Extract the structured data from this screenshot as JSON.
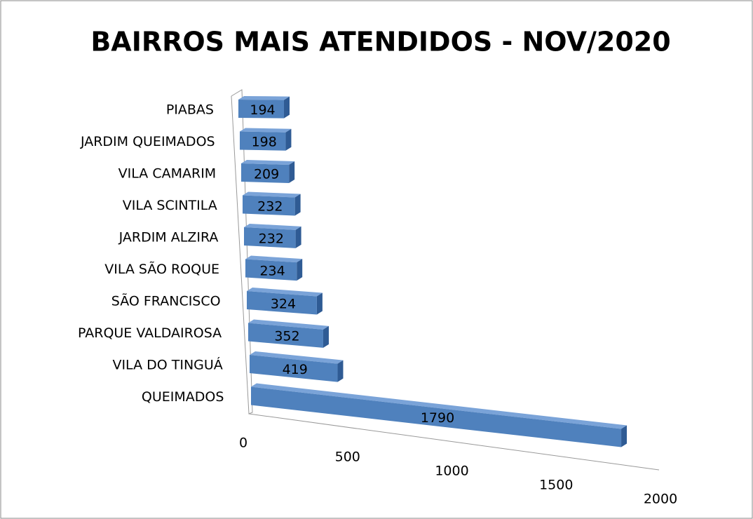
{
  "chart_data": {
    "type": "bar",
    "orientation": "horizontal",
    "title": "BAIRROS MAIS ATENDIDOS - NOV/2020",
    "categories": [
      "PIABAS",
      "JARDIM QUEIMADOS",
      "VILA CAMARIM",
      "VILA SCINTILA",
      "JARDIM ALZIRA",
      "VILA SÃO ROQUE",
      "SÃO FRANCISCO",
      "PARQUE VALDAIROSA",
      "VILA DO TINGUÁ",
      "QUEIMADOS"
    ],
    "values": [
      194,
      198,
      209,
      232,
      232,
      234,
      324,
      352,
      419,
      1790
    ],
    "color": "#4f81bd",
    "xlim": [
      0,
      2000
    ],
    "xticks": [
      0,
      500,
      1000,
      1500,
      2000
    ]
  }
}
